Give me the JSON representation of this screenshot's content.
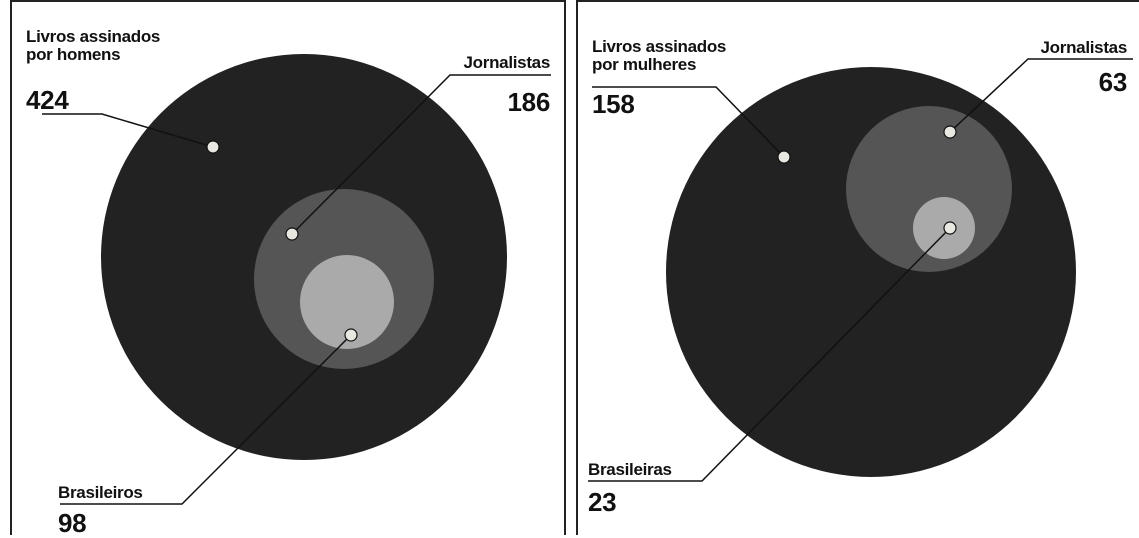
{
  "chart_data": [
    {
      "type": "nested-bubble",
      "total": {
        "label": "Livros assinados por homens",
        "lines": [
          "Livros assinados",
          "por homens"
        ],
        "value": 424
      },
      "subsets": [
        {
          "label": "Jornalistas",
          "value": 186
        },
        {
          "label": "Brasileiros",
          "value": 98
        }
      ]
    },
    {
      "type": "nested-bubble",
      "total": {
        "label": "Livros assinados por mulheres",
        "lines": [
          "Livros assinados",
          "por mulheres"
        ],
        "value": 158
      },
      "subsets": [
        {
          "label": "Jornalistas",
          "value": 63
        },
        {
          "label": "Brasileiras",
          "value": 23
        }
      ]
    }
  ],
  "colors": {
    "total": "#222222",
    "journalists": "#555555",
    "brazilians": "#aaaaaa",
    "dot": "#e8e8e0",
    "line": "#111111"
  }
}
